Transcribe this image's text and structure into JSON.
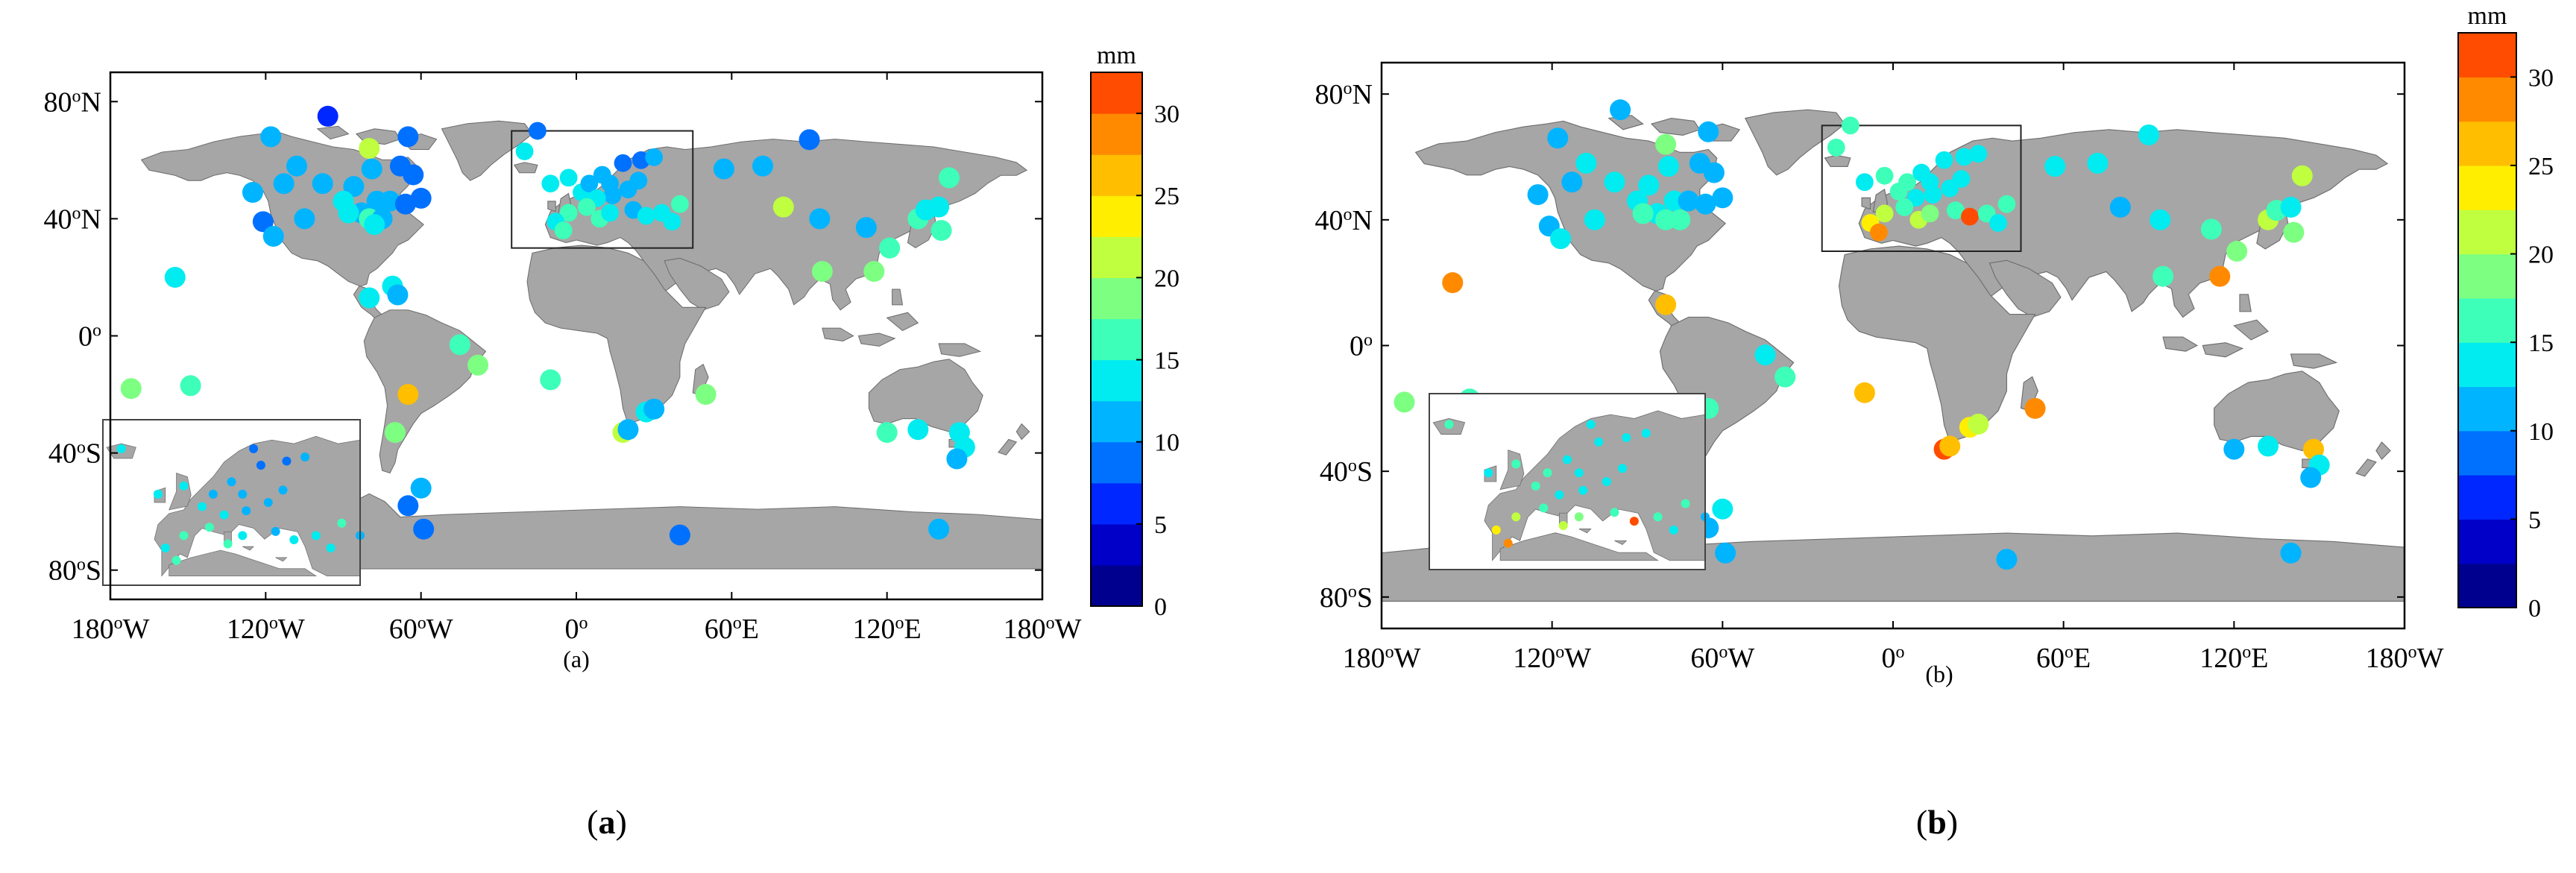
{
  "panels": [
    {
      "id": "a",
      "inner_caption": "(a)",
      "outer_caption": "a",
      "colorbar_unit": "mm",
      "stations": [
        [
          -96,
          75,
          6
        ],
        [
          -80,
          64,
          20
        ],
        [
          -65,
          68,
          8
        ],
        [
          -118,
          68,
          10
        ],
        [
          -108,
          58,
          12
        ],
        [
          -113,
          52,
          10
        ],
        [
          -125,
          49,
          10
        ],
        [
          -98,
          52,
          12
        ],
        [
          -86,
          51,
          11
        ],
        [
          -90,
          46,
          13
        ],
        [
          -83,
          42,
          11
        ],
        [
          -77,
          46,
          10
        ],
        [
          -72,
          46,
          12
        ],
        [
          -66,
          45,
          8
        ],
        [
          -60,
          47,
          9
        ],
        [
          -63,
          55,
          8
        ],
        [
          -68,
          58,
          9
        ],
        [
          -79,
          57,
          12
        ],
        [
          -121,
          39,
          8
        ],
        [
          -117,
          34,
          11
        ],
        [
          -105,
          40,
          12
        ],
        [
          -88,
          42,
          14
        ],
        [
          -80,
          40,
          16
        ],
        [
          -75,
          40,
          12
        ],
        [
          -78,
          38,
          13
        ],
        [
          -155,
          20,
          14
        ],
        [
          -71,
          17,
          14
        ],
        [
          -80,
          13,
          14
        ],
        [
          -69,
          14,
          12
        ],
        [
          -45,
          -3,
          16
        ],
        [
          -38,
          -10,
          18
        ],
        [
          -65,
          -20,
          26
        ],
        [
          -70,
          -33,
          18
        ],
        [
          -60,
          -52,
          10
        ],
        [
          -65,
          -58,
          9
        ],
        [
          -59,
          -66,
          8
        ],
        [
          -172,
          -18,
          19
        ],
        [
          -149,
          -17,
          15
        ],
        [
          -20,
          63,
          14
        ],
        [
          -15,
          70,
          8
        ],
        [
          -10,
          52,
          14
        ],
        [
          -3,
          54,
          13
        ],
        [
          2,
          49,
          14
        ],
        [
          5,
          52,
          12
        ],
        [
          10,
          55,
          12
        ],
        [
          13,
          52,
          10
        ],
        [
          18,
          59,
          8
        ],
        [
          25,
          60,
          9
        ],
        [
          30,
          61,
          11
        ],
        [
          24,
          53,
          10
        ],
        [
          20,
          50,
          12
        ],
        [
          14,
          48,
          11
        ],
        [
          8,
          47,
          14
        ],
        [
          4,
          44,
          16
        ],
        [
          -3,
          42,
          15
        ],
        [
          -8,
          39,
          14
        ],
        [
          -5,
          36,
          16
        ],
        [
          9,
          40,
          16
        ],
        [
          13,
          42,
          13
        ],
        [
          22,
          43,
          12
        ],
        [
          27,
          41,
          14
        ],
        [
          33,
          42,
          13
        ],
        [
          40,
          45,
          15
        ],
        [
          37,
          39,
          14
        ],
        [
          57,
          57,
          12
        ],
        [
          90,
          67,
          9
        ],
        [
          72,
          58,
          12
        ],
        [
          80,
          44,
          20
        ],
        [
          94,
          40,
          11
        ],
        [
          112,
          37,
          10
        ],
        [
          95,
          22,
          18
        ],
        [
          115,
          22,
          18
        ],
        [
          121,
          30,
          17
        ],
        [
          132,
          40,
          15
        ],
        [
          135,
          43,
          14
        ],
        [
          140,
          44,
          13
        ],
        [
          141,
          36,
          17
        ],
        [
          144,
          54,
          16
        ],
        [
          -10,
          -15,
          17
        ],
        [
          50,
          -20,
          18
        ],
        [
          18,
          -33,
          22
        ],
        [
          20,
          -32,
          11
        ],
        [
          27,
          -26,
          13
        ],
        [
          30,
          -25,
          12
        ],
        [
          120,
          -33,
          15
        ],
        [
          132,
          -32,
          13
        ],
        [
          148,
          -33,
          14
        ],
        [
          150,
          -38,
          13
        ],
        [
          147,
          -42,
          10
        ],
        [
          40,
          -68,
          8
        ],
        [
          140,
          -66,
          11
        ]
      ],
      "inset_stations": [
        [
          -20,
          63,
          14
        ],
        [
          -10,
          52,
          14
        ],
        [
          -3,
          54,
          13
        ],
        [
          2,
          49,
          14
        ],
        [
          5,
          52,
          12
        ],
        [
          10,
          55,
          12
        ],
        [
          13,
          52,
          10
        ],
        [
          18,
          59,
          8
        ],
        [
          25,
          60,
          9
        ],
        [
          30,
          61,
          11
        ],
        [
          24,
          53,
          10
        ],
        [
          20,
          50,
          12
        ],
        [
          14,
          48,
          11
        ],
        [
          8,
          47,
          14
        ],
        [
          4,
          44,
          16
        ],
        [
          -3,
          42,
          15
        ],
        [
          -8,
          39,
          14
        ],
        [
          -5,
          36,
          16
        ],
        [
          9,
          40,
          16
        ],
        [
          13,
          42,
          13
        ],
        [
          22,
          43,
          12
        ],
        [
          27,
          41,
          14
        ],
        [
          33,
          42,
          13
        ],
        [
          40,
          45,
          15
        ],
        [
          37,
          39,
          14
        ],
        [
          45,
          42,
          10
        ],
        [
          16,
          63,
          8
        ]
      ]
    },
    {
      "id": "b",
      "inner_caption": "(b)",
      "outer_caption": "b",
      "colorbar_unit": "mm",
      "stations": [
        [
          -96,
          75,
          11
        ],
        [
          -80,
          64,
          19
        ],
        [
          -65,
          68,
          12
        ],
        [
          -118,
          66,
          12
        ],
        [
          -108,
          58,
          13
        ],
        [
          -113,
          52,
          12
        ],
        [
          -125,
          48,
          11
        ],
        [
          -98,
          52,
          13
        ],
        [
          -86,
          51,
          13
        ],
        [
          -90,
          46,
          14
        ],
        [
          -83,
          42,
          13
        ],
        [
          -77,
          46,
          13
        ],
        [
          -72,
          46,
          12
        ],
        [
          -66,
          45,
          11
        ],
        [
          -60,
          47,
          11
        ],
        [
          -63,
          55,
          11
        ],
        [
          -68,
          58,
          12
        ],
        [
          -79,
          57,
          14
        ],
        [
          -121,
          38,
          12
        ],
        [
          -117,
          34,
          13
        ],
        [
          -105,
          40,
          13
        ],
        [
          -88,
          42,
          15
        ],
        [
          -80,
          40,
          16
        ],
        [
          -75,
          40,
          16
        ],
        [
          -155,
          20,
          28
        ],
        [
          -80,
          13,
          27
        ],
        [
          -45,
          -3,
          14
        ],
        [
          -38,
          -10,
          15
        ],
        [
          -65,
          -20,
          15
        ],
        [
          -70,
          -33,
          17
        ],
        [
          -60,
          -52,
          13
        ],
        [
          -65,
          -58,
          12
        ],
        [
          -59,
          -66,
          12
        ],
        [
          -172,
          -18,
          19
        ],
        [
          -149,
          -17,
          17
        ],
        [
          -20,
          63,
          16
        ],
        [
          -15,
          70,
          16
        ],
        [
          -10,
          52,
          14
        ],
        [
          -3,
          54,
          15
        ],
        [
          2,
          49,
          15
        ],
        [
          5,
          52,
          15
        ],
        [
          10,
          55,
          14
        ],
        [
          13,
          52,
          14
        ],
        [
          18,
          59,
          13
        ],
        [
          25,
          60,
          13
        ],
        [
          30,
          61,
          14
        ],
        [
          24,
          53,
          14
        ],
        [
          20,
          50,
          13
        ],
        [
          14,
          48,
          13
        ],
        [
          8,
          47,
          14
        ],
        [
          4,
          44,
          17
        ],
        [
          -3,
          42,
          21
        ],
        [
          -8,
          39,
          24
        ],
        [
          -5,
          36,
          28
        ],
        [
          9,
          40,
          22
        ],
        [
          13,
          42,
          19
        ],
        [
          22,
          43,
          17
        ],
        [
          27,
          41,
          31
        ],
        [
          33,
          42,
          16
        ],
        [
          40,
          45,
          16
        ],
        [
          37,
          39,
          14
        ],
        [
          57,
          57,
          13
        ],
        [
          90,
          67,
          13
        ],
        [
          72,
          58,
          13
        ],
        [
          80,
          44,
          12
        ],
        [
          94,
          40,
          13
        ],
        [
          112,
          37,
          17
        ],
        [
          95,
          22,
          16
        ],
        [
          115,
          22,
          29
        ],
        [
          121,
          30,
          18
        ],
        [
          132,
          40,
          20
        ],
        [
          135,
          43,
          15
        ],
        [
          140,
          44,
          13
        ],
        [
          141,
          36,
          19
        ],
        [
          144,
          54,
          21
        ],
        [
          -10,
          -15,
          25
        ],
        [
          50,
          -20,
          28
        ],
        [
          18,
          -33,
          31
        ],
        [
          20,
          -32,
          26
        ],
        [
          27,
          -26,
          24
        ],
        [
          30,
          -25,
          22
        ],
        [
          120,
          -33,
          12
        ],
        [
          132,
          -32,
          13
        ],
        [
          148,
          -33,
          25
        ],
        [
          150,
          -38,
          13
        ],
        [
          147,
          -42,
          11
        ],
        [
          40,
          -68,
          12
        ],
        [
          140,
          -66,
          11
        ]
      ],
      "inset_stations": [
        [
          -20,
          63,
          16
        ],
        [
          -10,
          52,
          14
        ],
        [
          -3,
          54,
          15
        ],
        [
          2,
          49,
          15
        ],
        [
          5,
          52,
          15
        ],
        [
          10,
          55,
          14
        ],
        [
          13,
          52,
          14
        ],
        [
          18,
          59,
          13
        ],
        [
          25,
          60,
          13
        ],
        [
          30,
          61,
          14
        ],
        [
          24,
          53,
          14
        ],
        [
          20,
          50,
          13
        ],
        [
          14,
          48,
          13
        ],
        [
          8,
          47,
          14
        ],
        [
          4,
          44,
          17
        ],
        [
          -3,
          42,
          21
        ],
        [
          -8,
          39,
          24
        ],
        [
          -5,
          36,
          28
        ],
        [
          9,
          40,
          22
        ],
        [
          13,
          42,
          19
        ],
        [
          22,
          43,
          17
        ],
        [
          27,
          41,
          31
        ],
        [
          33,
          42,
          16
        ],
        [
          40,
          45,
          16
        ],
        [
          37,
          39,
          14
        ],
        [
          45,
          42,
          12
        ],
        [
          16,
          63,
          13
        ]
      ]
    }
  ],
  "axis": {
    "x_ticks": [
      {
        "value": -180,
        "deg": "180",
        "sup": "o",
        "hem": "W"
      },
      {
        "value": -120,
        "deg": "120",
        "sup": "o",
        "hem": "W"
      },
      {
        "value": -60,
        "deg": "60",
        "sup": "o",
        "hem": "W"
      },
      {
        "value": 0,
        "deg": "0",
        "sup": "o",
        "hem": ""
      },
      {
        "value": 60,
        "deg": "60",
        "sup": "o",
        "hem": "E"
      },
      {
        "value": 120,
        "deg": "120",
        "sup": "o",
        "hem": "E"
      },
      {
        "value": 180,
        "deg": "180",
        "sup": "o",
        "hem": "W"
      }
    ],
    "y_ticks": [
      {
        "value": 80,
        "deg": "80",
        "sup": "o",
        "hem": "N"
      },
      {
        "value": 40,
        "deg": "40",
        "sup": "o",
        "hem": "N"
      },
      {
        "value": 0,
        "deg": "0",
        "sup": "o",
        "hem": ""
      },
      {
        "value": -40,
        "deg": "40",
        "sup": "o",
        "hem": "S"
      },
      {
        "value": -80,
        "deg": "80",
        "sup": "o",
        "hem": "S"
      }
    ],
    "lon_range": [
      -180,
      180
    ],
    "lat_range": [
      -90,
      90
    ]
  },
  "colorbar": {
    "range": [
      0,
      32.5
    ],
    "ticks": [
      0,
      5,
      10,
      15,
      20,
      25,
      30
    ],
    "colors": [
      "#00008f",
      "#0000c8",
      "#0027ff",
      "#0070ff",
      "#00b4ff",
      "#00ecf0",
      "#3effb9",
      "#7dff82",
      "#bfff40",
      "#ffee00",
      "#ffbe00",
      "#ff8a00",
      "#ff4c00"
    ]
  },
  "style": {
    "land_color": "#a6a6a6",
    "ocean_color": "#ffffff",
    "frame_color": "#000000"
  }
}
